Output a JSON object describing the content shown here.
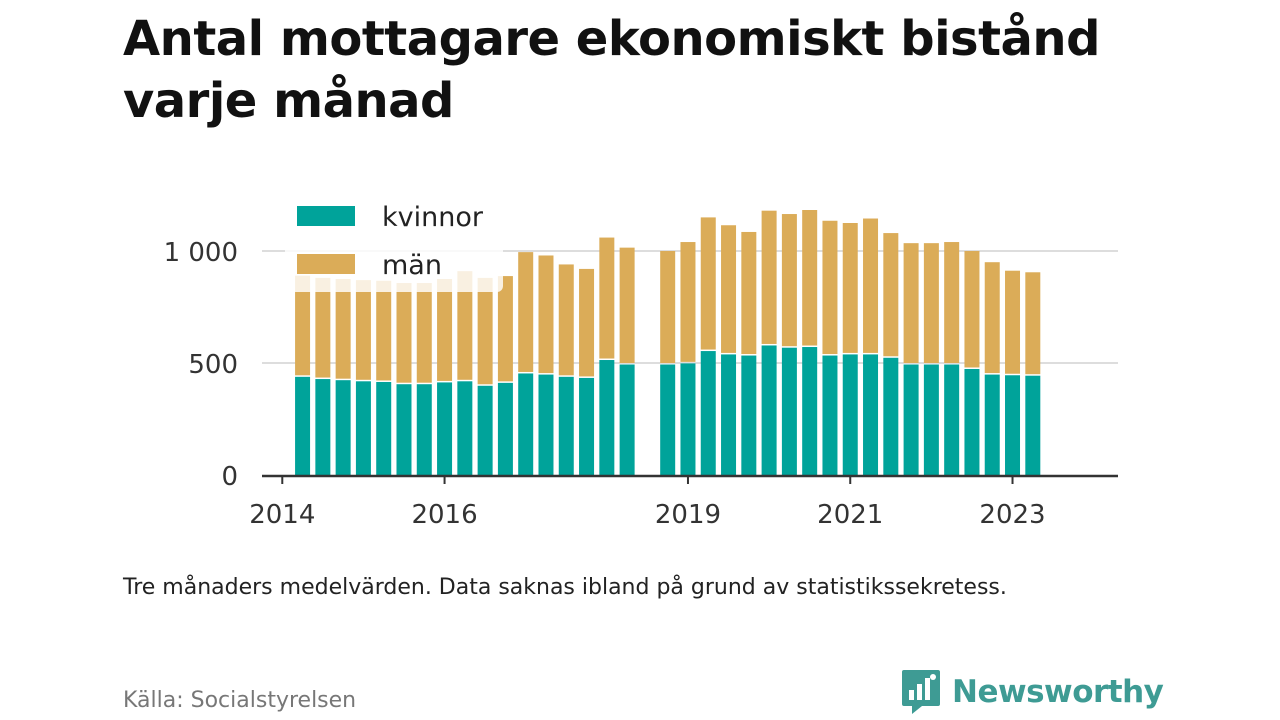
{
  "title": "Antal mottagare ekonomiskt bistånd varje månad",
  "note": "Tre månaders medelvärden. Data saknas ibland på grund av statistikssekretess.",
  "source": "Källa: Socialstyrelsen",
  "brand": {
    "name": "Newsworthy",
    "icon": "newsworthy-logo-icon",
    "color": "#3e9b94"
  },
  "colors": {
    "kvinnor": "#00a39a",
    "man": "#dbac58",
    "grid": "#dddddd",
    "axis": "#333333"
  },
  "chart_data": {
    "type": "bar",
    "stacked": true,
    "legend": {
      "position": "top-left"
    },
    "grid": true,
    "ylim": [
      0,
      1250
    ],
    "yticks": [
      {
        "value": 0,
        "label": "0"
      },
      {
        "value": 500,
        "label": "500"
      },
      {
        "value": 1000,
        "label": "1 000"
      }
    ],
    "xticks": [
      {
        "x": 2014,
        "label": "2014"
      },
      {
        "x": 2016,
        "label": "2016"
      },
      {
        "x": 2019,
        "label": "2019"
      },
      {
        "x": 2021,
        "label": "2021"
      },
      {
        "x": 2023,
        "label": "2023"
      }
    ],
    "xlim": [
      2013.75,
      2024.3
    ],
    "x": [
      2014.25,
      2014.5,
      2014.75,
      2015.0,
      2015.25,
      2015.5,
      2015.75,
      2016.0,
      2016.25,
      2016.5,
      2016.75,
      2017.0,
      2017.25,
      2017.5,
      2017.75,
      2018.0,
      2018.25,
      2018.75,
      2019.0,
      2019.25,
      2019.5,
      2019.75,
      2020.0,
      2020.25,
      2020.5,
      2020.75,
      2021.0,
      2021.25,
      2021.5,
      2021.75,
      2022.0,
      2022.25,
      2022.5,
      2022.75,
      2023.0,
      2023.25
    ],
    "series": [
      {
        "name": "kvinnor",
        "values": [
          445,
          435,
          430,
          425,
          422,
          412,
          412,
          420,
          425,
          405,
          418,
          460,
          455,
          445,
          440,
          520,
          500,
          500,
          505,
          560,
          545,
          540,
          585,
          575,
          578,
          540,
          545,
          545,
          530,
          500,
          500,
          500,
          480,
          455,
          452,
          450
        ]
      },
      {
        "name": "män",
        "values": [
          445,
          445,
          445,
          445,
          445,
          445,
          445,
          455,
          485,
          475,
          470,
          535,
          525,
          495,
          480,
          540,
          515,
          500,
          535,
          590,
          570,
          545,
          595,
          590,
          605,
          595,
          580,
          600,
          550,
          535,
          535,
          540,
          520,
          495,
          460,
          455
        ]
      }
    ]
  }
}
